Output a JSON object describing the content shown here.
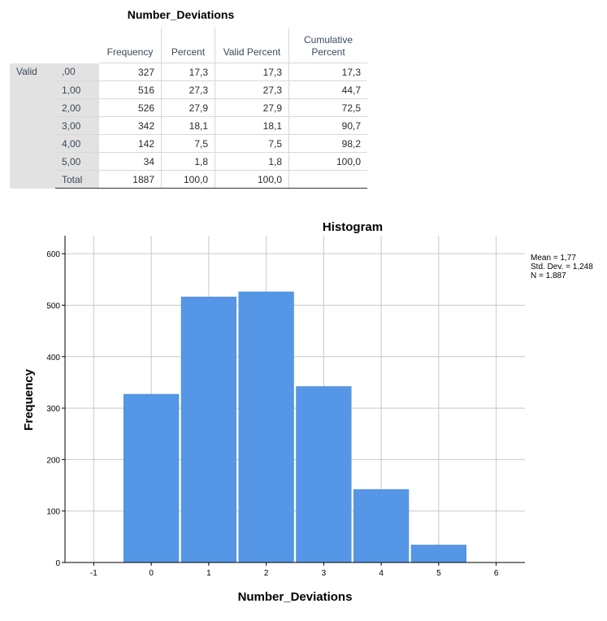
{
  "table": {
    "title": "Number_Deviations",
    "headers": [
      "Frequency",
      "Percent",
      "Valid Percent",
      "Cumulative\nPercent"
    ],
    "group_label": "Valid",
    "rows": [
      {
        "label": ",00",
        "frequency": "327",
        "percent": "17,3",
        "valid_percent": "17,3",
        "cumulative": "17,3"
      },
      {
        "label": "1,00",
        "frequency": "516",
        "percent": "27,3",
        "valid_percent": "27,3",
        "cumulative": "44,7"
      },
      {
        "label": "2,00",
        "frequency": "526",
        "percent": "27,9",
        "valid_percent": "27,9",
        "cumulative": "72,5"
      },
      {
        "label": "3,00",
        "frequency": "342",
        "percent": "18,1",
        "valid_percent": "18,1",
        "cumulative": "90,7"
      },
      {
        "label": "4,00",
        "frequency": "142",
        "percent": "7,5",
        "valid_percent": "7,5",
        "cumulative": "98,2"
      },
      {
        "label": "5,00",
        "frequency": "34",
        "percent": "1,8",
        "valid_percent": "1,8",
        "cumulative": "100,0"
      },
      {
        "label": "Total",
        "frequency": "1887",
        "percent": "100,0",
        "valid_percent": "100,0",
        "cumulative": ""
      }
    ]
  },
  "stats": {
    "mean": "Mean = 1,77",
    "std_dev": "Std. Dev. = 1,248",
    "n": "N = 1.887"
  },
  "colors": {
    "bar": "#5597e6",
    "grid": "#c8c8c8"
  },
  "chart_data": {
    "type": "bar",
    "title": "Histogram",
    "xlabel": "Number_Deviations",
    "ylabel": "Frequency",
    "categories": [
      "0",
      "1",
      "2",
      "3",
      "4",
      "5"
    ],
    "bins": [
      0,
      1,
      2,
      3,
      4,
      5
    ],
    "values": [
      327,
      516,
      526,
      342,
      142,
      34
    ],
    "xlim": [
      -1,
      6
    ],
    "ylim": [
      0,
      600
    ],
    "x_ticks": [
      "-1",
      "0",
      "1",
      "2",
      "3",
      "4",
      "5",
      "6"
    ],
    "y_ticks": [
      "0",
      "100",
      "200",
      "300",
      "400",
      "500",
      "600"
    ],
    "grid": true
  }
}
